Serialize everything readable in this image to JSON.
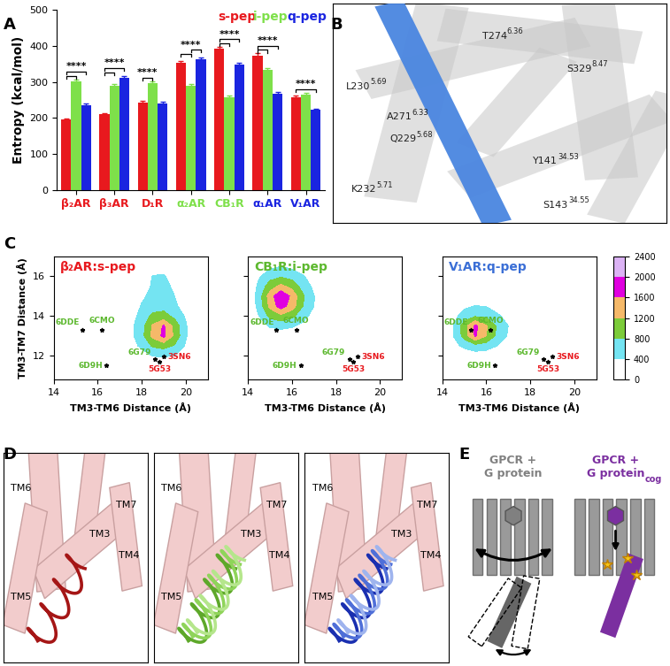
{
  "panel_letters": [
    "A",
    "B",
    "C",
    "D",
    "E"
  ],
  "chart_data": [
    {
      "type": "bar",
      "panel": "A",
      "categories": [
        "β₂AR",
        "β₃AR",
        "D₁R",
        "α₂AR",
        "CB₁R",
        "α₁AR",
        "V₁AR"
      ],
      "y_label": "Entropy (kcal/mol)",
      "ylim": [
        0,
        500
      ],
      "yticks": [
        0,
        100,
        200,
        300,
        400,
        500
      ],
      "legend": "upper right",
      "series": [
        {
          "name": "s-pep",
          "color": "#e8191e",
          "values": [
            195,
            210,
            242,
            352,
            392,
            373,
            258
          ],
          "errors": [
            4,
            4,
            5,
            5,
            5,
            6,
            5
          ]
        },
        {
          "name": "i-pep",
          "color": "#7ee04a",
          "values": [
            302,
            290,
            297,
            290,
            258,
            333,
            265
          ],
          "errors": [
            5,
            5,
            5,
            5,
            5,
            6,
            5
          ]
        },
        {
          "name": "q-pep",
          "color": "#1a24e0",
          "values": [
            235,
            312,
            240,
            362,
            348,
            268,
            222
          ],
          "errors": [
            5,
            5,
            5,
            6,
            6,
            5,
            4
          ]
        }
      ],
      "annotations": [
        {
          "category": "β₂AR",
          "text": "****",
          "pairs": [
            [
              "s-pep",
              "i-pep"
            ],
            [
              "s-pep",
              "q-pep"
            ]
          ]
        },
        {
          "category": "β₃AR",
          "text": "****",
          "pairs": [
            [
              "s-pep",
              "i-pep"
            ],
            [
              "s-pep",
              "q-pep"
            ]
          ]
        },
        {
          "category": "D₁R",
          "text": "****",
          "pairs": [
            [
              "s-pep",
              "i-pep"
            ]
          ]
        },
        {
          "category": "α₂AR",
          "text": "****",
          "pairs": [
            [
              "s-pep",
              "i-pep"
            ],
            [
              "i-pep",
              "q-pep"
            ]
          ]
        },
        {
          "category": "CB₁R",
          "text": "****",
          "pairs": [
            [
              "s-pep",
              "i-pep"
            ],
            [
              "s-pep",
              "q-pep"
            ]
          ]
        },
        {
          "category": "α₁AR",
          "text": "****",
          "pairs": [
            [
              "s-pep",
              "i-pep"
            ],
            [
              "s-pep",
              "q-pep"
            ]
          ]
        },
        {
          "category": "V₁AR",
          "text": "****",
          "pairs": [
            [
              "s-pep",
              "q-pep"
            ]
          ]
        }
      ]
    },
    {
      "type": "contour",
      "panel": "C",
      "title": "β₂AR:s-pep",
      "color": "#e8191e",
      "x_label": "TM3-TM6 Distance (Å)",
      "y_label": "TM3-TM7 Distance (Å)",
      "xlim": [
        14,
        21
      ],
      "ylim": [
        10.8,
        17
      ],
      "xticks": [
        14,
        16,
        18,
        20
      ],
      "yticks": [
        12,
        14,
        16
      ],
      "x": [
        14,
        14.5,
        15,
        15.5,
        16,
        16.5,
        17,
        17.5,
        18,
        18.5,
        19,
        19.5,
        20,
        20.5,
        21
      ],
      "y": [
        11,
        11.5,
        12,
        12.5,
        13,
        13.5,
        14,
        14.5,
        15,
        15.5,
        16,
        16.5,
        17
      ],
      "z": [
        [
          0,
          0,
          0,
          0,
          0,
          0,
          0,
          0,
          0,
          0,
          0,
          0,
          0,
          0,
          0
        ],
        [
          0,
          0,
          0,
          0,
          0,
          0,
          0,
          0,
          0,
          0,
          0,
          0,
          0,
          0,
          0
        ],
        [
          0,
          0,
          0,
          0,
          0,
          0,
          0,
          0,
          200,
          420,
          450,
          400,
          150,
          0,
          0
        ],
        [
          0,
          0,
          0,
          0,
          0,
          0,
          0,
          200,
          500,
          850,
          950,
          750,
          350,
          0,
          0
        ],
        [
          0,
          0,
          0,
          0,
          0,
          0,
          0,
          300,
          650,
          1300,
          1700,
          1100,
          450,
          0,
          0
        ],
        [
          0,
          0,
          0,
          0,
          0,
          0,
          0,
          300,
          650,
          1250,
          1650,
          1050,
          450,
          0,
          0
        ],
        [
          0,
          0,
          0,
          0,
          0,
          0,
          0,
          200,
          550,
          900,
          950,
          700,
          350,
          0,
          0
        ],
        [
          0,
          0,
          0,
          0,
          0,
          0,
          0,
          0,
          450,
          600,
          650,
          500,
          150,
          0,
          0
        ],
        [
          0,
          0,
          0,
          0,
          0,
          0,
          0,
          0,
          300,
          550,
          600,
          400,
          0,
          0,
          0
        ],
        [
          0,
          0,
          0,
          0,
          0,
          0,
          0,
          0,
          0,
          500,
          550,
          300,
          0,
          0,
          0
        ],
        [
          0,
          0,
          0,
          0,
          0,
          0,
          0,
          0,
          0,
          420,
          450,
          150,
          0,
          0,
          0
        ],
        [
          0,
          0,
          0,
          0,
          0,
          0,
          0,
          0,
          0,
          150,
          200,
          0,
          0,
          0,
          0
        ],
        [
          0,
          0,
          0,
          0,
          0,
          0,
          0,
          0,
          0,
          0,
          0,
          0,
          0,
          0,
          0
        ]
      ],
      "points": [
        {
          "label": "6DDE",
          "x": 15.3,
          "y": 13.3,
          "color": "#5cb82e"
        },
        {
          "label": "6CMO",
          "x": 16.2,
          "y": 13.3,
          "color": "#5cb82e"
        },
        {
          "label": "6D9H",
          "x": 16.4,
          "y": 11.5,
          "color": "#5cb82e"
        },
        {
          "label": "6G79",
          "x": 18.6,
          "y": 11.85,
          "color": "#5cb82e"
        },
        {
          "label": "3SN6",
          "x": 19.0,
          "y": 11.95,
          "color": "#e8191e"
        },
        {
          "label": "5G53",
          "x": 18.8,
          "y": 11.7,
          "color": "#e8191e"
        }
      ]
    },
    {
      "type": "contour",
      "panel": "C",
      "title": "CB₁R:i-pep",
      "color": "#5cb82e",
      "x_label": "TM3-TM6 Distance (Å)",
      "tick_labels": "x",
      "xlim": [
        14,
        21
      ],
      "ylim": [
        10.8,
        17
      ],
      "xticks": [
        14,
        16,
        18,
        20
      ],
      "yticks": [
        12,
        14,
        16
      ],
      "x": [
        14,
        14.5,
        15,
        15.5,
        16,
        16.5,
        17,
        17.5,
        18,
        18.5,
        19,
        19.5,
        20,
        20.5,
        21
      ],
      "y": [
        11,
        11.5,
        12,
        12.5,
        13,
        13.5,
        14,
        14.5,
        15,
        15.5,
        16,
        16.5,
        17
      ],
      "z": [
        [
          0,
          0,
          0,
          0,
          0,
          0,
          0,
          0,
          0,
          0,
          0,
          0,
          0,
          0,
          0
        ],
        [
          0,
          0,
          0,
          0,
          0,
          0,
          0,
          0,
          0,
          0,
          0,
          0,
          0,
          0,
          0
        ],
        [
          0,
          0,
          0,
          0,
          0,
          0,
          0,
          0,
          0,
          0,
          0,
          0,
          0,
          0,
          0
        ],
        [
          0,
          0,
          0,
          0,
          0,
          0,
          0,
          0,
          0,
          0,
          0,
          0,
          0,
          0,
          0
        ],
        [
          0,
          0,
          100,
          200,
          150,
          0,
          0,
          0,
          0,
          0,
          0,
          0,
          0,
          0,
          0
        ],
        [
          0,
          200,
          450,
          500,
          450,
          300,
          100,
          0,
          0,
          0,
          0,
          0,
          0,
          0,
          0
        ],
        [
          0,
          400,
          900,
          1100,
          900,
          550,
          250,
          0,
          0,
          0,
          0,
          0,
          0,
          0,
          0
        ],
        [
          0,
          550,
          1300,
          1800,
          1400,
          800,
          400,
          0,
          0,
          0,
          0,
          0,
          0,
          0,
          0
        ],
        [
          0,
          600,
          1400,
          1950,
          1500,
          850,
          420,
          0,
          0,
          0,
          0,
          0,
          0,
          0,
          0
        ],
        [
          0,
          500,
          1000,
          1300,
          1050,
          650,
          300,
          0,
          0,
          0,
          0,
          0,
          0,
          0,
          0
        ],
        [
          0,
          350,
          650,
          750,
          650,
          450,
          150,
          0,
          0,
          0,
          0,
          0,
          0,
          0,
          0
        ],
        [
          0,
          0,
          300,
          400,
          300,
          100,
          0,
          0,
          0,
          0,
          0,
          0,
          0,
          0,
          0
        ],
        [
          0,
          0,
          0,
          0,
          0,
          0,
          0,
          0,
          0,
          0,
          0,
          0,
          0,
          0,
          0
        ]
      ],
      "points": [
        {
          "label": "6DDE",
          "x": 15.3,
          "y": 13.3,
          "color": "#5cb82e"
        },
        {
          "label": "6CMO",
          "x": 16.2,
          "y": 13.3,
          "color": "#5cb82e"
        },
        {
          "label": "6D9H",
          "x": 16.4,
          "y": 11.5,
          "color": "#5cb82e"
        },
        {
          "label": "6G79",
          "x": 18.6,
          "y": 11.85,
          "color": "#5cb82e"
        },
        {
          "label": "3SN6",
          "x": 19.0,
          "y": 11.95,
          "color": "#e8191e"
        },
        {
          "label": "5G53",
          "x": 18.8,
          "y": 11.7,
          "color": "#e8191e"
        }
      ]
    },
    {
      "type": "contour",
      "panel": "C",
      "title": "V₁AR:q-pep",
      "color": "#3b6fd6",
      "x_label": "TM3-TM6 Distance (Å)",
      "tick_labels": "x",
      "xlim": [
        14,
        21
      ],
      "ylim": [
        10.8,
        17
      ],
      "xticks": [
        14,
        16,
        18,
        20
      ],
      "yticks": [
        12,
        14,
        16
      ],
      "x": [
        14,
        14.5,
        15,
        15.5,
        16,
        16.5,
        17,
        17.5,
        18,
        18.5,
        19,
        19.5,
        20,
        20.5,
        21
      ],
      "y": [
        11,
        11.5,
        12,
        12.5,
        13,
        13.5,
        14,
        14.5,
        15,
        15.5,
        16,
        16.5,
        17
      ],
      "z": [
        [
          0,
          0,
          0,
          0,
          0,
          0,
          0,
          0,
          0,
          0,
          0,
          0,
          0,
          0,
          0
        ],
        [
          0,
          0,
          0,
          0,
          0,
          0,
          0,
          0,
          0,
          0,
          0,
          0,
          0,
          0,
          0
        ],
        [
          0,
          0,
          100,
          200,
          150,
          0,
          0,
          0,
          0,
          0,
          0,
          0,
          0,
          0,
          0
        ],
        [
          0,
          250,
          500,
          650,
          600,
          400,
          150,
          0,
          0,
          0,
          0,
          0,
          0,
          0,
          0
        ],
        [
          0,
          400,
          950,
          1650,
          1200,
          700,
          350,
          0,
          0,
          0,
          0,
          0,
          0,
          0,
          0
        ],
        [
          0,
          400,
          1000,
          1700,
          1250,
          750,
          400,
          0,
          0,
          0,
          0,
          0,
          0,
          0,
          0
        ],
        [
          0,
          250,
          600,
          750,
          700,
          500,
          200,
          0,
          0,
          0,
          0,
          0,
          0,
          0,
          0
        ],
        [
          0,
          0,
          300,
          420,
          380,
          150,
          0,
          0,
          0,
          0,
          0,
          0,
          0,
          0,
          0
        ],
        [
          0,
          0,
          0,
          0,
          0,
          0,
          0,
          0,
          0,
          0,
          0,
          0,
          0,
          0,
          0
        ],
        [
          0,
          0,
          0,
          0,
          0,
          0,
          0,
          0,
          0,
          0,
          0,
          0,
          0,
          0,
          0
        ],
        [
          0,
          0,
          0,
          0,
          0,
          0,
          0,
          0,
          0,
          0,
          0,
          0,
          0,
          0,
          0
        ],
        [
          0,
          0,
          0,
          0,
          0,
          0,
          0,
          0,
          0,
          0,
          0,
          0,
          0,
          0,
          0
        ],
        [
          0,
          0,
          0,
          0,
          0,
          0,
          0,
          0,
          0,
          0,
          0,
          0,
          0,
          0,
          0
        ]
      ],
      "points": [
        {
          "label": "6DDE",
          "x": 15.3,
          "y": 13.3,
          "color": "#5cb82e"
        },
        {
          "label": "6CMO",
          "x": 16.2,
          "y": 13.3,
          "color": "#5cb82e"
        },
        {
          "label": "6D9H",
          "x": 16.4,
          "y": 11.5,
          "color": "#5cb82e"
        },
        {
          "label": "6G79",
          "x": 18.6,
          "y": 11.85,
          "color": "#5cb82e"
        },
        {
          "label": "3SN6",
          "x": 19.0,
          "y": 11.95,
          "color": "#e8191e"
        },
        {
          "label": "5G53",
          "x": 18.8,
          "y": 11.7,
          "color": "#e8191e"
        }
      ]
    }
  ],
  "colorbar": {
    "range": [
      0,
      2400
    ],
    "ticks": [
      0,
      400,
      800,
      1200,
      1600,
      2000,
      2400
    ],
    "colors": [
      "#ffffff",
      "#74e4f2",
      "#7ccc3a",
      "#f5b969",
      "#e000e0",
      "#dcb3f5"
    ]
  },
  "panel_B": {
    "residues": [
      {
        "residue": "T274",
        "bw": "6.36"
      },
      {
        "residue": "L230",
        "bw": "5.69"
      },
      {
        "residue": "A271",
        "bw": "6.33"
      },
      {
        "residue": "Q229",
        "bw": "5.68"
      },
      {
        "residue": "S329",
        "bw": "8.47"
      },
      {
        "residue": "K232",
        "bw": "5.71"
      },
      {
        "residue": "Y141",
        "bw": "34.53"
      },
      {
        "residue": "S143",
        "bw": "34.55"
      }
    ]
  },
  "panel_D": {
    "helices": [
      "TM6",
      "TM7",
      "TM3",
      "TM4",
      "TM5"
    ]
  },
  "panel_E": {
    "panels": [
      {
        "title": "GPCR +\nG protein",
        "color": "#808080"
      },
      {
        "title": "GPCR +\nG protein",
        "subscript": "cog",
        "color": "#7b2fa0"
      }
    ]
  }
}
